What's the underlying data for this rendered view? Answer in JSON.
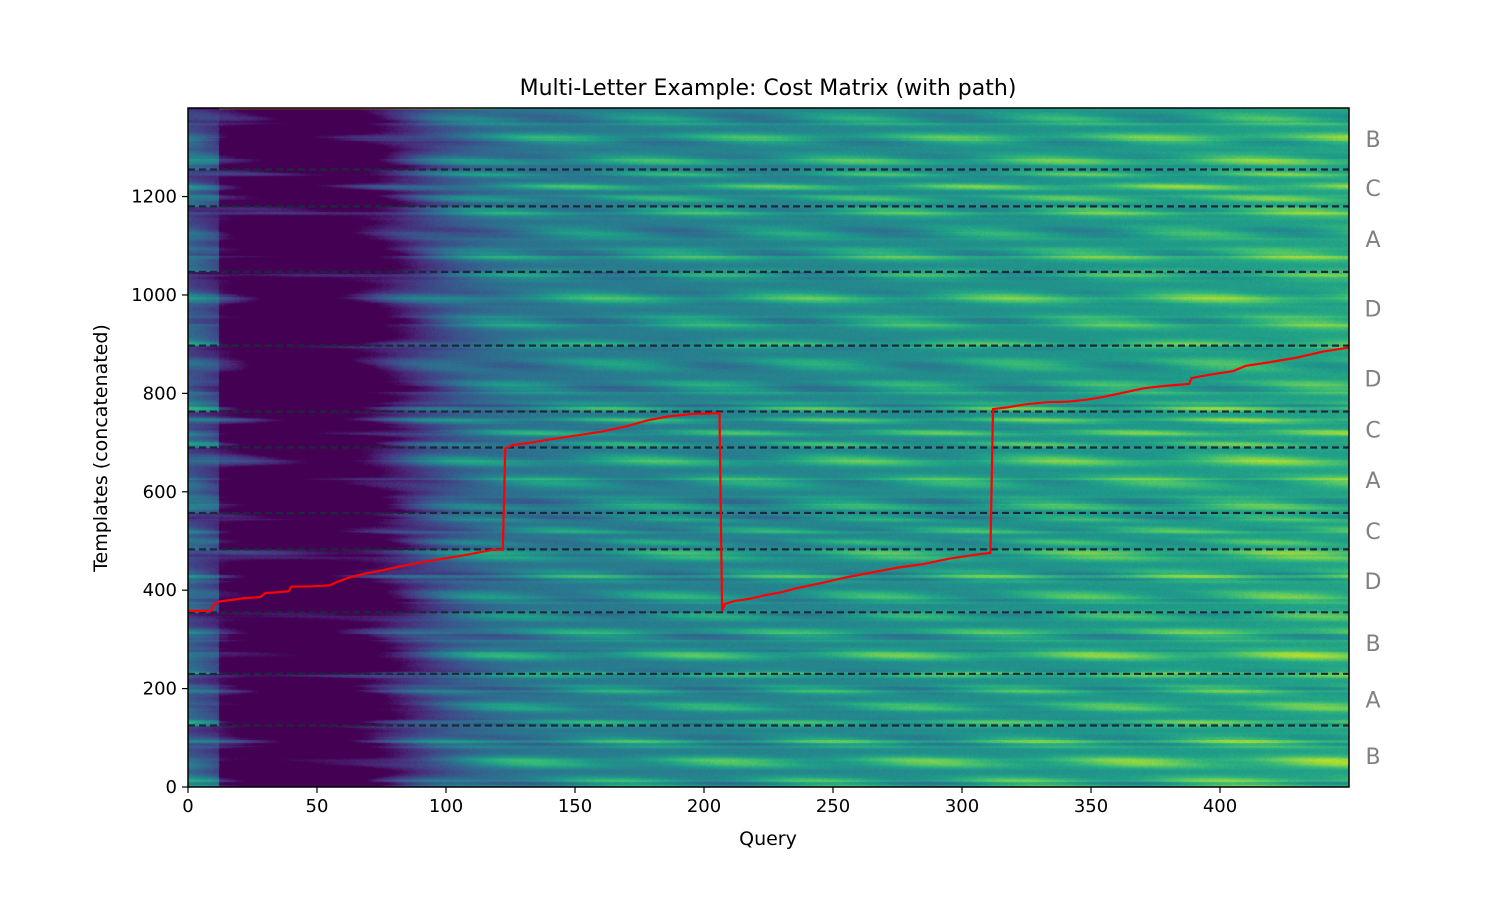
{
  "chart_data": {
    "type": "heatmap",
    "title": "Multi-Letter Example: Cost Matrix (with path)",
    "xlabel": "Query",
    "ylabel": "Templates (concatenated)",
    "xlim": [
      0,
      450
    ],
    "ylim": [
      0,
      1380
    ],
    "x_ticks": [
      0,
      50,
      100,
      150,
      200,
      250,
      300,
      350,
      400
    ],
    "y_ticks": [
      0,
      200,
      400,
      600,
      800,
      1000,
      1200
    ],
    "colormap": "viridis",
    "separator_color": "#1a2a3a",
    "path_color": "#ff0000",
    "boundaries": [
      125,
      230,
      355,
      483,
      557,
      690,
      763,
      897,
      1047,
      1180,
      1255
    ],
    "segments": [
      {
        "label": "B",
        "start": 0,
        "end": 125
      },
      {
        "label": "A",
        "start": 125,
        "end": 230
      },
      {
        "label": "B",
        "start": 230,
        "end": 355
      },
      {
        "label": "D",
        "start": 355,
        "end": 483
      },
      {
        "label": "C",
        "start": 483,
        "end": 557
      },
      {
        "label": "A",
        "start": 557,
        "end": 690
      },
      {
        "label": "C",
        "start": 690,
        "end": 763
      },
      {
        "label": "D",
        "start": 763,
        "end": 897
      },
      {
        "label": "D",
        "start": 897,
        "end": 1047
      },
      {
        "label": "A",
        "start": 1047,
        "end": 1180
      },
      {
        "label": "C",
        "start": 1180,
        "end": 1255
      },
      {
        "label": "B",
        "start": 1255,
        "end": 1380
      }
    ],
    "path": [
      [
        0,
        358
      ],
      [
        9,
        358
      ],
      [
        10,
        370
      ],
      [
        12,
        377
      ],
      [
        15,
        379
      ],
      [
        18,
        381
      ],
      [
        22,
        384
      ],
      [
        28,
        386
      ],
      [
        30,
        394
      ],
      [
        35,
        396
      ],
      [
        39,
        398
      ],
      [
        40,
        407
      ],
      [
        48,
        408
      ],
      [
        55,
        410
      ],
      [
        58,
        417
      ],
      [
        62,
        425
      ],
      [
        68,
        433
      ],
      [
        75,
        440
      ],
      [
        82,
        448
      ],
      [
        90,
        456
      ],
      [
        100,
        465
      ],
      [
        108,
        472
      ],
      [
        115,
        479
      ],
      [
        118,
        482
      ],
      [
        122,
        482
      ],
      [
        123,
        688
      ],
      [
        126,
        695
      ],
      [
        133,
        700
      ],
      [
        140,
        706
      ],
      [
        150,
        714
      ],
      [
        160,
        722
      ],
      [
        170,
        733
      ],
      [
        178,
        745
      ],
      [
        186,
        753
      ],
      [
        195,
        758
      ],
      [
        206,
        760
      ],
      [
        207,
        357
      ],
      [
        208,
        372
      ],
      [
        212,
        378
      ],
      [
        218,
        383
      ],
      [
        224,
        390
      ],
      [
        230,
        396
      ],
      [
        236,
        404
      ],
      [
        245,
        414
      ],
      [
        255,
        426
      ],
      [
        265,
        436
      ],
      [
        275,
        446
      ],
      [
        285,
        453
      ],
      [
        295,
        464
      ],
      [
        305,
        472
      ],
      [
        311,
        476
      ],
      [
        312,
        768
      ],
      [
        318,
        772
      ],
      [
        325,
        778
      ],
      [
        333,
        782
      ],
      [
        341,
        783
      ],
      [
        348,
        787
      ],
      [
        355,
        793
      ],
      [
        362,
        801
      ],
      [
        370,
        810
      ],
      [
        378,
        815
      ],
      [
        388,
        819
      ],
      [
        389,
        831
      ],
      [
        396,
        838
      ],
      [
        405,
        845
      ],
      [
        410,
        856
      ],
      [
        420,
        864
      ],
      [
        430,
        873
      ],
      [
        440,
        885
      ],
      [
        450,
        893
      ]
    ]
  }
}
